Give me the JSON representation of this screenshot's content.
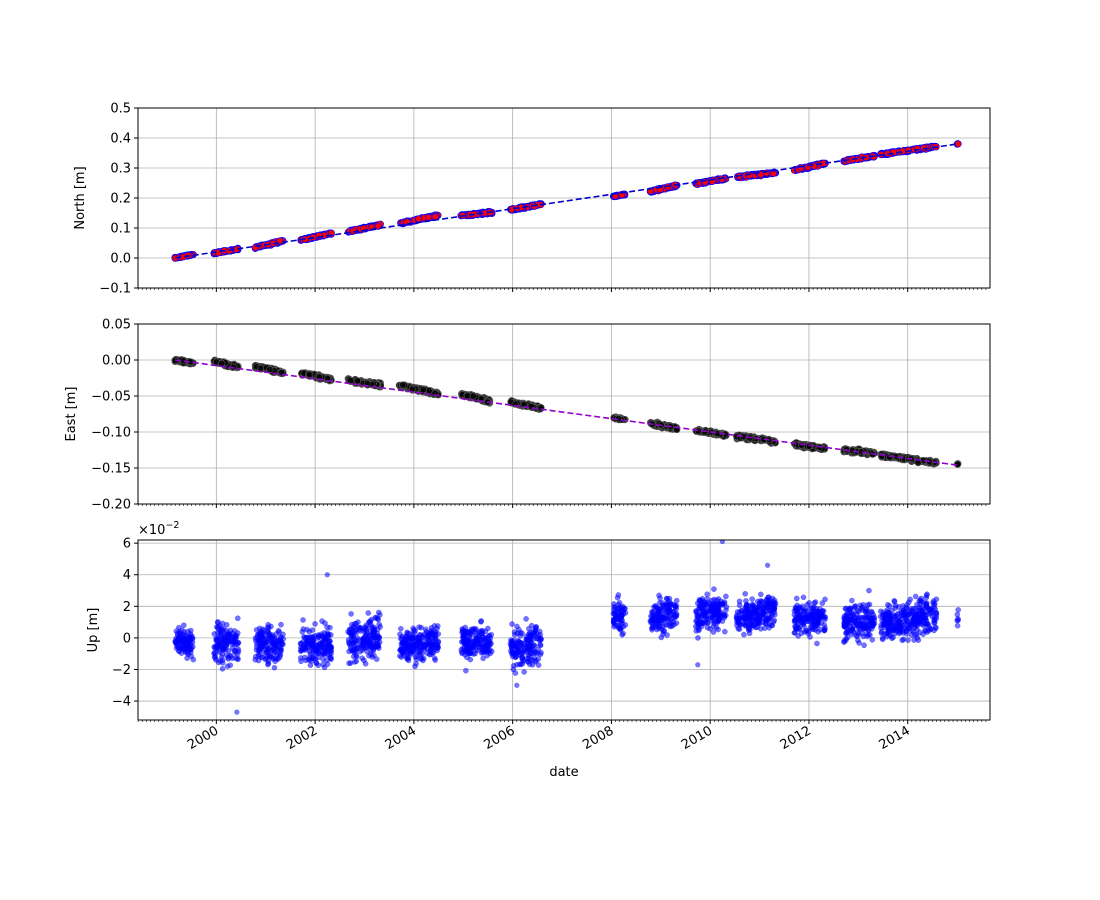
{
  "figure": {
    "xlabel": "date",
    "x_range": [
      "1998-06-01",
      "2015-09-01"
    ],
    "x_ticks": [
      "2000",
      "2002",
      "2004",
      "2006",
      "2008",
      "2010",
      "2012",
      "2014"
    ],
    "x_tick_dates": [
      "2000-01-01",
      "2002-01-01",
      "2004-01-01",
      "2006-01-01",
      "2008-01-01",
      "2010-01-01",
      "2012-01-01",
      "2014-01-01"
    ],
    "grid": true,
    "shared_x": true
  },
  "chart_data": [
    {
      "type": "scatter",
      "ylabel": "North [m]",
      "ylim": [
        -0.1,
        0.5
      ],
      "y_ticks": [
        "−0.1",
        "0.0",
        "0.1",
        "0.2",
        "0.3",
        "0.4",
        "0.5"
      ],
      "y_tick_values": [
        -0.1,
        0.0,
        0.1,
        0.2,
        0.3,
        0.4,
        0.5
      ],
      "trend": {
        "style": "dashed",
        "color": "#0000cc",
        "x": [
          "1999-03-01",
          "2015-01-01"
        ],
        "y": [
          0.0,
          0.38
        ]
      },
      "points": {
        "color": "#ff0000",
        "edge_color": "#0000ff",
        "observation_periods": [
          {
            "start": "1999-03-01",
            "end": "1999-07-15",
            "y_start": 0.0,
            "y_end": 0.012,
            "spread": 0.003
          },
          {
            "start": "1999-12-15",
            "end": "2000-06-15",
            "y_start": 0.016,
            "y_end": 0.03,
            "spread": 0.003
          },
          {
            "start": "2000-10-15",
            "end": "2001-05-15",
            "y_start": 0.035,
            "y_end": 0.058,
            "spread": 0.004
          },
          {
            "start": "2001-09-15",
            "end": "2002-05-01",
            "y_start": 0.06,
            "y_end": 0.082,
            "spread": 0.004
          },
          {
            "start": "2002-09-01",
            "end": "2003-05-01",
            "y_start": 0.088,
            "y_end": 0.11,
            "spread": 0.004
          },
          {
            "start": "2003-09-15",
            "end": "2004-07-01",
            "y_start": 0.115,
            "y_end": 0.142,
            "spread": 0.004
          },
          {
            "start": "2004-12-15",
            "end": "2005-08-01",
            "y_start": 0.142,
            "y_end": 0.152,
            "spread": 0.004
          },
          {
            "start": "2005-12-15",
            "end": "2006-08-01",
            "y_start": 0.16,
            "y_end": 0.18,
            "spread": 0.004
          },
          {
            "start": "2008-01-15",
            "end": "2008-04-15",
            "y_start": 0.205,
            "y_end": 0.212,
            "spread": 0.003
          },
          {
            "start": "2008-10-15",
            "end": "2009-05-01",
            "y_start": 0.222,
            "y_end": 0.242,
            "spread": 0.004
          },
          {
            "start": "2009-09-15",
            "end": "2010-05-01",
            "y_start": 0.248,
            "y_end": 0.265,
            "spread": 0.004
          },
          {
            "start": "2010-07-15",
            "end": "2011-05-01",
            "y_start": 0.27,
            "y_end": 0.285,
            "spread": 0.004
          },
          {
            "start": "2011-09-15",
            "end": "2012-05-01",
            "y_start": 0.293,
            "y_end": 0.315,
            "spread": 0.004
          },
          {
            "start": "2012-09-15",
            "end": "2013-05-01",
            "y_start": 0.323,
            "y_end": 0.34,
            "spread": 0.004
          },
          {
            "start": "2013-06-15",
            "end": "2014-08-01",
            "y_start": 0.345,
            "y_end": 0.372,
            "spread": 0.004
          },
          {
            "start": "2015-01-01",
            "end": "2015-01-10",
            "y_start": 0.38,
            "y_end": 0.38,
            "spread": 0.002
          }
        ]
      }
    },
    {
      "type": "scatter",
      "ylabel": "East [m]",
      "ylim": [
        -0.2,
        0.05
      ],
      "y_ticks": [
        "−0.20",
        "−0.15",
        "−0.10",
        "−0.05",
        "0.00",
        "0.05"
      ],
      "y_tick_values": [
        -0.2,
        -0.15,
        -0.1,
        -0.05,
        0.0,
        0.05
      ],
      "trend": {
        "style": "dashed",
        "color": "#9400d3",
        "x": [
          "1999-03-01",
          "2015-01-01"
        ],
        "y": [
          0.0,
          -0.146
        ]
      },
      "points": {
        "color": "#000000",
        "edge_color": "#555555",
        "observation_periods": [
          {
            "start": "1999-03-01",
            "end": "1999-07-15",
            "y_start": 0.0,
            "y_end": -0.004,
            "spread": 0.0025
          },
          {
            "start": "1999-12-15",
            "end": "2000-06-15",
            "y_start": -0.002,
            "y_end": -0.01,
            "spread": 0.003
          },
          {
            "start": "2000-10-15",
            "end": "2001-05-15",
            "y_start": -0.008,
            "y_end": -0.018,
            "spread": 0.003
          },
          {
            "start": "2001-09-15",
            "end": "2002-05-01",
            "y_start": -0.018,
            "y_end": -0.027,
            "spread": 0.003
          },
          {
            "start": "2002-09-01",
            "end": "2003-05-01",
            "y_start": -0.028,
            "y_end": -0.035,
            "spread": 0.003
          },
          {
            "start": "2003-09-15",
            "end": "2004-07-01",
            "y_start": -0.035,
            "y_end": -0.047,
            "spread": 0.003
          },
          {
            "start": "2004-12-15",
            "end": "2005-08-01",
            "y_start": -0.047,
            "y_end": -0.058,
            "spread": 0.003
          },
          {
            "start": "2005-12-15",
            "end": "2006-08-01",
            "y_start": -0.058,
            "y_end": -0.067,
            "spread": 0.003
          },
          {
            "start": "2008-01-15",
            "end": "2008-04-15",
            "y_start": -0.08,
            "y_end": -0.083,
            "spread": 0.002
          },
          {
            "start": "2008-10-15",
            "end": "2009-05-01",
            "y_start": -0.088,
            "y_end": -0.095,
            "spread": 0.003
          },
          {
            "start": "2009-09-15",
            "end": "2010-05-01",
            "y_start": -0.098,
            "y_end": -0.104,
            "spread": 0.003
          },
          {
            "start": "2010-07-15",
            "end": "2011-05-01",
            "y_start": -0.106,
            "y_end": -0.113,
            "spread": 0.003
          },
          {
            "start": "2011-09-15",
            "end": "2012-05-01",
            "y_start": -0.117,
            "y_end": -0.123,
            "spread": 0.003
          },
          {
            "start": "2012-09-15",
            "end": "2013-05-01",
            "y_start": -0.125,
            "y_end": -0.13,
            "spread": 0.003
          },
          {
            "start": "2013-06-15",
            "end": "2014-08-01",
            "y_start": -0.132,
            "y_end": -0.143,
            "spread": 0.003
          },
          {
            "start": "2015-01-01",
            "end": "2015-01-10",
            "y_start": -0.145,
            "y_end": -0.145,
            "spread": 0.002
          }
        ]
      }
    },
    {
      "type": "scatter",
      "ylabel": "Up [m]",
      "ylim": [
        -5.2,
        6.2
      ],
      "scale_label": "×10",
      "scale_exponent": "−2",
      "y_ticks": [
        "−4",
        "−2",
        "0",
        "2",
        "4",
        "6"
      ],
      "y_tick_values": [
        -4,
        -2,
        0,
        2,
        4,
        6
      ],
      "points": {
        "color": "#0000ff",
        "opacity": 0.55,
        "observation_periods": [
          {
            "start": "1999-03-01",
            "end": "1999-07-15",
            "y_start": -0.3,
            "y_end": -0.3,
            "spread": 1.0
          },
          {
            "start": "1999-12-15",
            "end": "2000-06-15",
            "y_start": -0.3,
            "y_end": -0.3,
            "spread": 1.3
          },
          {
            "start": "2000-10-15",
            "end": "2001-05-15",
            "y_start": -0.4,
            "y_end": -0.4,
            "spread": 1.2
          },
          {
            "start": "2001-09-15",
            "end": "2002-05-01",
            "y_start": -0.5,
            "y_end": -0.5,
            "spread": 1.3
          },
          {
            "start": "2002-09-01",
            "end": "2003-05-01",
            "y_start": -0.3,
            "y_end": 0.2,
            "spread": 1.3
          },
          {
            "start": "2003-09-15",
            "end": "2004-07-01",
            "y_start": -0.5,
            "y_end": -0.2,
            "spread": 1.1
          },
          {
            "start": "2004-12-15",
            "end": "2005-08-01",
            "y_start": -0.3,
            "y_end": -0.2,
            "spread": 1.2
          },
          {
            "start": "2005-12-15",
            "end": "2006-08-01",
            "y_start": -0.7,
            "y_end": -0.3,
            "spread": 1.3
          },
          {
            "start": "2008-01-15",
            "end": "2008-04-15",
            "y_start": 1.3,
            "y_end": 1.3,
            "spread": 1.0
          },
          {
            "start": "2008-10-15",
            "end": "2009-05-01",
            "y_start": 1.2,
            "y_end": 1.6,
            "spread": 1.1
          },
          {
            "start": "2009-09-15",
            "end": "2010-05-01",
            "y_start": 1.4,
            "y_end": 1.8,
            "spread": 1.3
          },
          {
            "start": "2010-07-15",
            "end": "2011-05-01",
            "y_start": 1.3,
            "y_end": 1.8,
            "spread": 1.1
          },
          {
            "start": "2011-09-15",
            "end": "2012-05-01",
            "y_start": 1.2,
            "y_end": 1.2,
            "spread": 1.1
          },
          {
            "start": "2012-09-15",
            "end": "2013-05-01",
            "y_start": 0.9,
            "y_end": 1.1,
            "spread": 1.2
          },
          {
            "start": "2013-06-15",
            "end": "2014-08-01",
            "y_start": 0.9,
            "y_end": 1.5,
            "spread": 1.2
          },
          {
            "start": "2015-01-01",
            "end": "2015-01-10",
            "y_start": 1.2,
            "y_end": 1.2,
            "spread": 1.0
          }
        ],
        "outliers": [
          {
            "x": "2000-06-01",
            "y": -4.7
          },
          {
            "x": "2002-04-01",
            "y": 4.0
          },
          {
            "x": "2010-04-01",
            "y": 6.1
          },
          {
            "x": "2011-03-01",
            "y": 4.6
          },
          {
            "x": "2006-02-01",
            "y": -3.0
          },
          {
            "x": "2009-10-01",
            "y": -1.7
          }
        ]
      }
    }
  ]
}
